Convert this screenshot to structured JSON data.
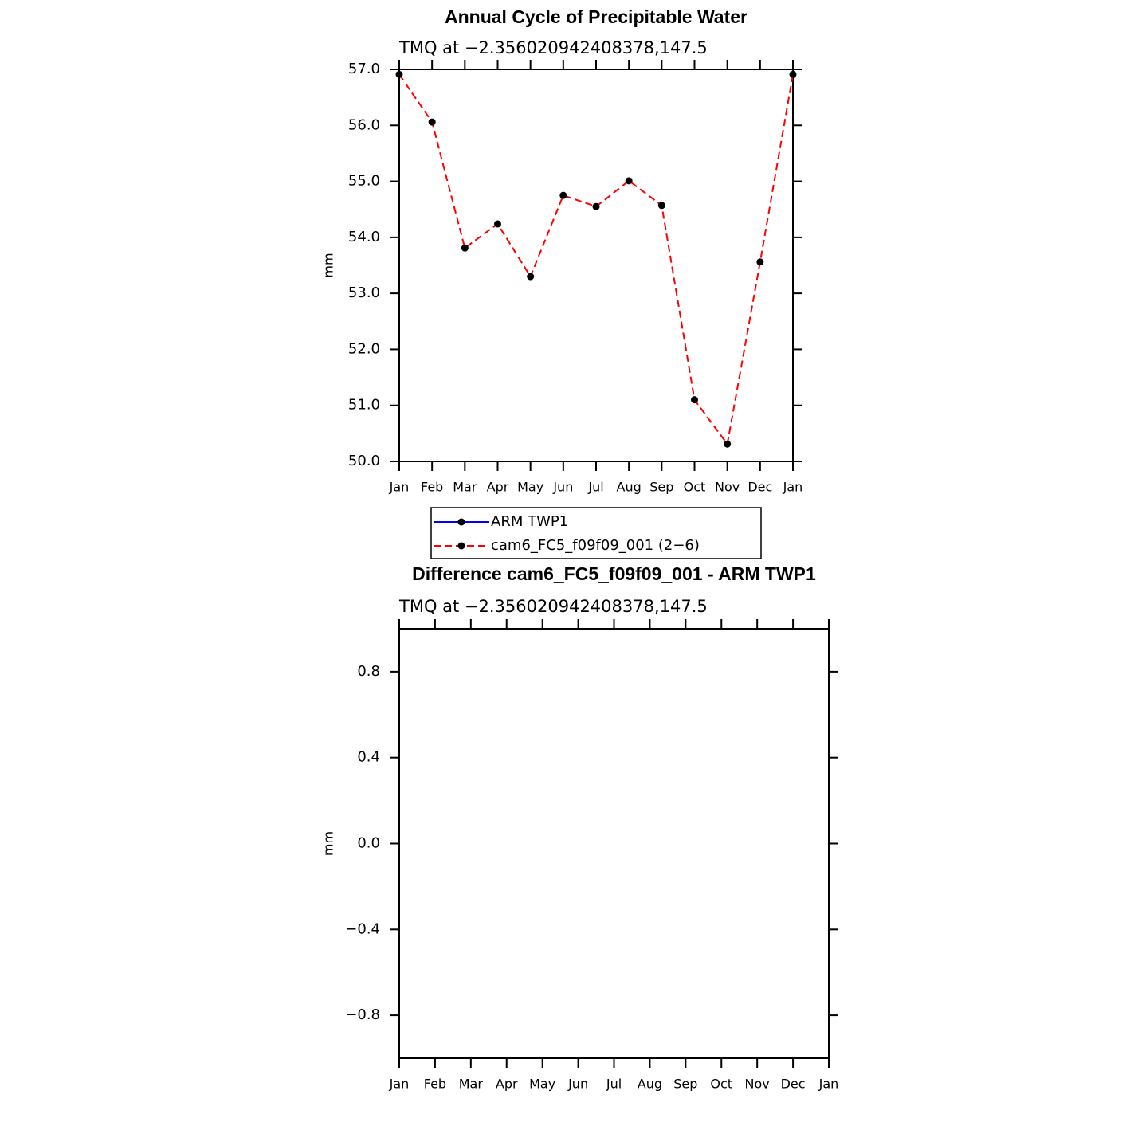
{
  "chart_data": [
    {
      "type": "line",
      "title": "Annual Cycle of Precipitable Water",
      "subtitle": "TMQ at −2.356020942408378,147.5",
      "ylabel": "mm",
      "categories": [
        "Jan",
        "Feb",
        "Mar",
        "Apr",
        "May",
        "Jun",
        "Jul",
        "Aug",
        "Sep",
        "Oct",
        "Nov",
        "Dec",
        "Jan"
      ],
      "series": [
        {
          "name": "ARM TWP1",
          "color": "#0000ff",
          "linestyle": "solid",
          "marker_color": "#000000",
          "values": [
            null,
            null,
            null,
            null,
            null,
            null,
            null,
            null,
            null,
            null,
            null,
            null,
            null
          ]
        },
        {
          "name": "cam6_FC5_f09f09_001 (2−6)",
          "color": "#ff0000",
          "linestyle": "dashed",
          "marker_color": "#000000",
          "values": [
            56.91,
            56.06,
            53.81,
            54.24,
            53.3,
            54.75,
            54.55,
            55.01,
            54.57,
            51.1,
            50.31,
            53.56,
            56.91
          ]
        }
      ],
      "ylim": [
        50,
        57
      ],
      "yticks": [
        {
          "value": 50,
          "label": "50.0"
        },
        {
          "value": 51,
          "label": "51.0"
        },
        {
          "value": 52,
          "label": "52.0"
        },
        {
          "value": 53,
          "label": "53.0"
        },
        {
          "value": 54,
          "label": "54.0"
        },
        {
          "value": 55,
          "label": "55.0"
        },
        {
          "value": 56,
          "label": "56.0"
        },
        {
          "value": 57,
          "label": "57.0"
        }
      ],
      "legend": "below"
    },
    {
      "type": "line",
      "title": "Difference cam6_FC5_f09f09_001 - ARM TWP1",
      "subtitle": "TMQ at −2.356020942408378,147.5",
      "ylabel": "mm",
      "categories": [
        "Jan",
        "Feb",
        "Mar",
        "Apr",
        "May",
        "Jun",
        "Jul",
        "Aug",
        "Sep",
        "Oct",
        "Nov",
        "Dec",
        "Jan"
      ],
      "ylim": [
        -1,
        1
      ],
      "yticks": [
        {
          "value": -0.8,
          "label": "−0.8"
        },
        {
          "value": -0.4,
          "label": "−0.4"
        },
        {
          "value": 0,
          "label": "0.0"
        },
        0.4,
        0.8
      ]
    }
  ]
}
